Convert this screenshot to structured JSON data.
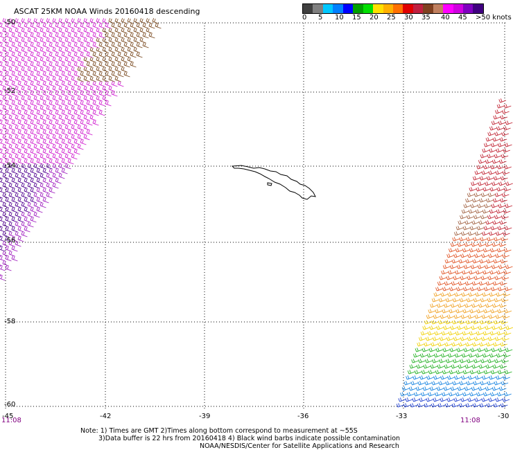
{
  "title": "ASCAT 25KM NOAA Winds 20160418 descending",
  "legend": {
    "colors": [
      "#404040",
      "#808080",
      "#00c8ff",
      "#0080ff",
      "#0000ff",
      "#00a000",
      "#00e000",
      "#ffe000",
      "#ffb000",
      "#ff7000",
      "#e00000",
      "#c02040",
      "#804020",
      "#c08060",
      "#ff00ff",
      "#d000e0",
      "#8000c0",
      "#400080"
    ],
    "labels": [
      "0",
      "5",
      "10",
      "15",
      "20",
      "25",
      "30",
      "35",
      "40",
      "45",
      ">50 knots"
    ]
  },
  "lat_labels": [
    "-50",
    "-52",
    "-54",
    "-56",
    "-58",
    "-60"
  ],
  "lon_labels": [
    "-45",
    "-42",
    "-39",
    "-36",
    "-33",
    "-30"
  ],
  "time_labels": [
    "11:08",
    "11:08"
  ],
  "notes": [
    "Note: 1) Times are GMT 2)Times along bottom correspond to measurement at ~55S",
    "3)Data buffer is 22 hrs from 20160418 4) Black wind barbs indicate possible contamination",
    "NOAA/NESDIS/Center for Satellite Applications and Research"
  ]
}
